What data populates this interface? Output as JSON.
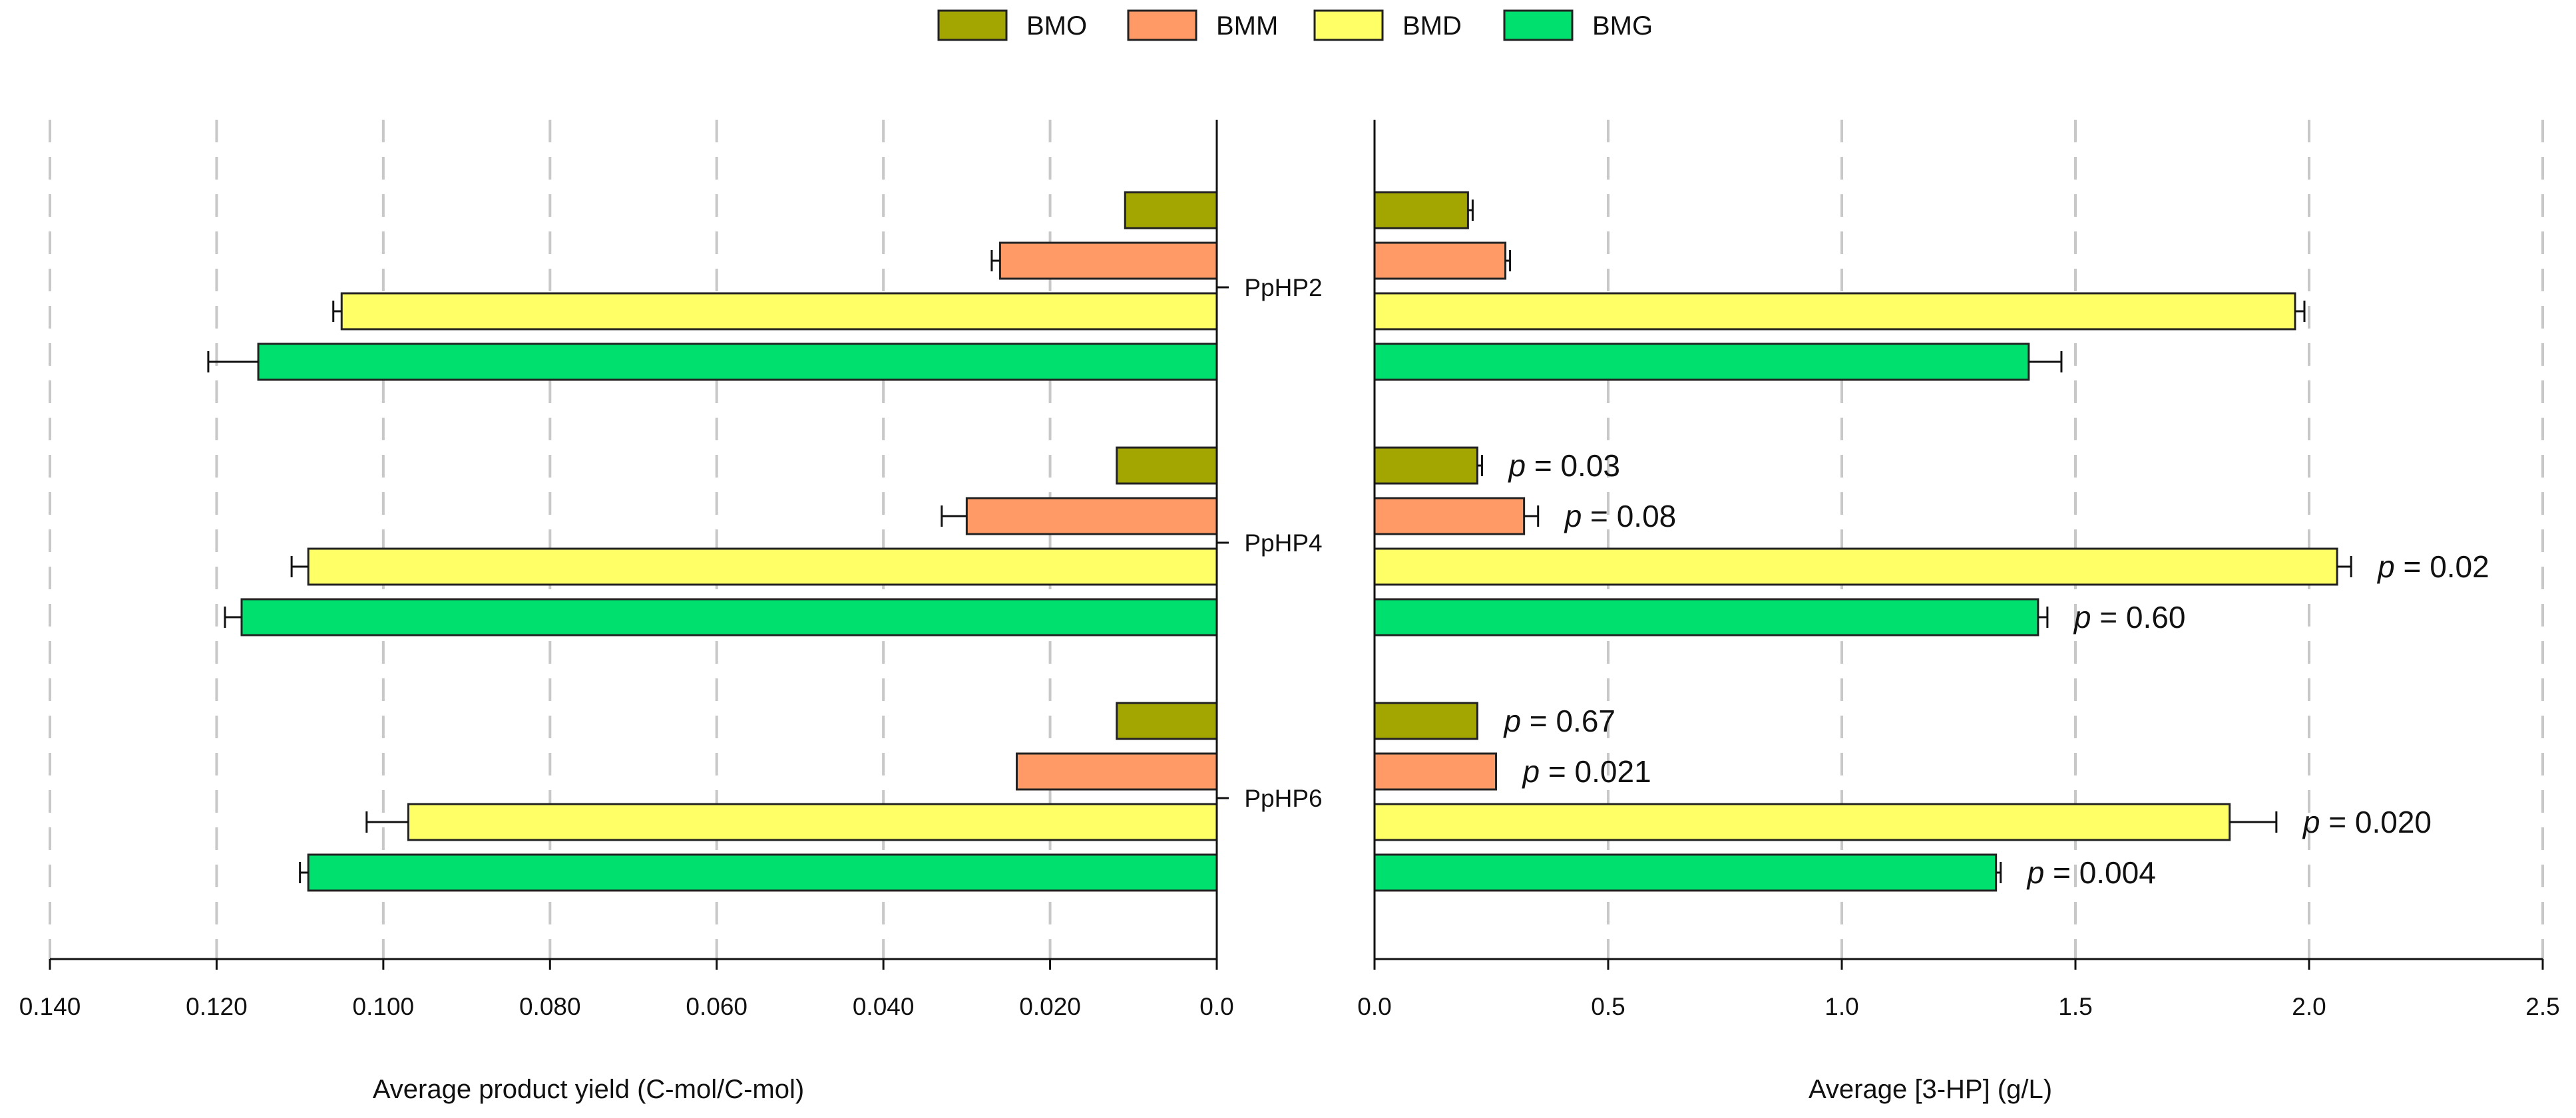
{
  "chart_data": [
    {
      "type": "bar",
      "orientation": "horizontal",
      "direction": "reversed",
      "categories": [
        "PpHP2",
        "PpHP4",
        "PpHP6"
      ],
      "xlabel": "Average product yield (C-mol/C-mol)",
      "xlim": [
        0,
        0.14
      ],
      "xticks": [
        "0.140",
        "0.120",
        "0.100",
        "0.080",
        "0.060",
        "0.040",
        "0.020",
        "0.0"
      ],
      "grid": true,
      "series": [
        {
          "name": "BMO",
          "values": [
            0.011,
            0.012,
            0.012
          ],
          "errors": [
            0,
            0,
            0
          ]
        },
        {
          "name": "BMM",
          "values": [
            0.026,
            0.03,
            0.024
          ],
          "errors": [
            0.001,
            0.003,
            0
          ]
        },
        {
          "name": "BMD",
          "values": [
            0.105,
            0.109,
            0.097
          ],
          "errors": [
            0.001,
            0.002,
            0.005
          ]
        },
        {
          "name": "BMG",
          "values": [
            0.115,
            0.117,
            0.109
          ],
          "errors": [
            0.006,
            0.002,
            0.001
          ]
        }
      ]
    },
    {
      "type": "bar",
      "orientation": "horizontal",
      "categories": [
        "PpHP2",
        "PpHP4",
        "PpHP6"
      ],
      "xlabel": "Average [3-HP] (g/L)",
      "xlim": [
        0,
        2.5
      ],
      "xticks": [
        "0.0",
        "0.5",
        "1.0",
        "1.5",
        "2.0",
        "2.5"
      ],
      "grid": true,
      "series": [
        {
          "name": "BMO",
          "values": [
            0.2,
            0.22,
            0.22
          ],
          "errors": [
            0.01,
            0.01,
            0
          ],
          "pvalues": [
            "",
            "p = 0.03",
            "p = 0.67"
          ]
        },
        {
          "name": "BMM",
          "values": [
            0.28,
            0.32,
            0.26
          ],
          "errors": [
            0.01,
            0.03,
            0
          ],
          "pvalues": [
            "",
            "p = 0.08",
            "p = 0.021"
          ]
        },
        {
          "name": "BMD",
          "values": [
            1.97,
            2.06,
            1.83
          ],
          "errors": [
            0.02,
            0.03,
            0.1
          ],
          "pvalues": [
            "",
            "p = 0.02",
            "p = 0.020"
          ]
        },
        {
          "name": "BMG",
          "values": [
            1.4,
            1.42,
            1.33
          ],
          "errors": [
            0.07,
            0.02,
            0.01
          ],
          "pvalues": [
            "",
            "p = 0.60",
            "p = 0.004"
          ]
        }
      ]
    }
  ],
  "legend": {
    "placement": "top-center",
    "items": [
      {
        "name": "BMO",
        "color": "#a3a600"
      },
      {
        "name": "BMM",
        "color": "#ff9966"
      },
      {
        "name": "BMD",
        "color": "#ffff66"
      },
      {
        "name": "BMG",
        "color": "#00e06e"
      }
    ]
  }
}
